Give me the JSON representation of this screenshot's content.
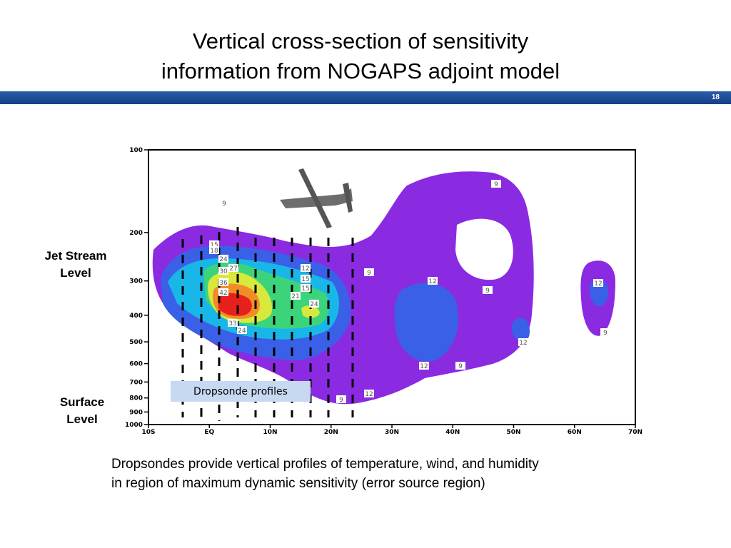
{
  "header": {
    "title_lines": [
      "Vertical cross-section of sensitivity",
      "information from NOGAPS adjoint model"
    ],
    "page_number": "18"
  },
  "side_labels": {
    "jet_stream": [
      "Jet Stream",
      "Level"
    ],
    "surface": [
      "Surface",
      "Level"
    ]
  },
  "figure": {
    "y_labels": [
      100,
      200,
      300,
      400,
      500,
      600,
      700,
      800,
      900,
      1000
    ],
    "x_labels": [
      "10S",
      "EQ",
      "10N",
      "20N",
      "30N",
      "40N",
      "50N",
      "60N",
      "70N"
    ],
    "contour_labels": [
      "9",
      "15",
      "18",
      "24",
      "27",
      "30",
      "36",
      "42",
      "12",
      "15",
      "15",
      "21",
      "24",
      "33",
      "24",
      "9",
      "9",
      "12",
      "9",
      "12",
      "9",
      "12",
      "12",
      "9",
      "12",
      "9"
    ],
    "callout": "Dropsonde profiles"
  },
  "caption": [
    "Dropsondes provide vertical profiles of temperature, wind, and humidity",
    "in region of maximum dynamic sensitivity (error source region)"
  ]
}
